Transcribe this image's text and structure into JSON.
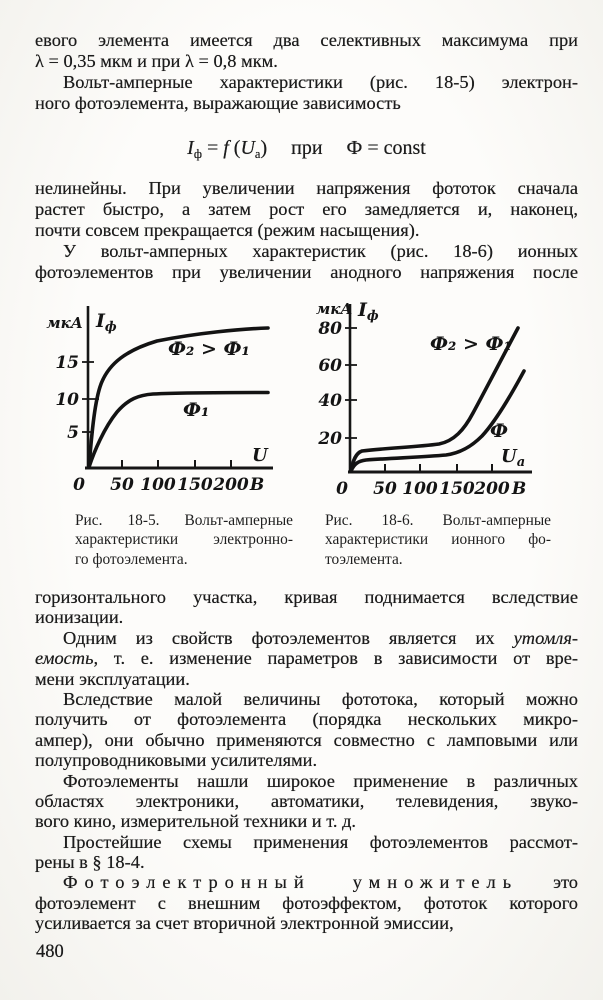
{
  "page": {
    "number": "480"
  },
  "content": {
    "top": {
      "paragraphs": [
        {
          "indent": false,
          "lines": [
            {
              "j": 1,
              "seg": [
                {
                  "t": "евого элемента имеется два селективных максимума при"
                }
              ]
            },
            {
              "j": 0,
              "seg": [
                {
                  "t": "λ = 0,35 мкм и при λ = 0,8 мкм."
                }
              ]
            }
          ]
        },
        {
          "indent": true,
          "lines": [
            {
              "j": 1,
              "seg": [
                {
                  "t": "Вольт-амперные характеристики (рис. 18-5) электрон-"
                }
              ]
            },
            {
              "j": 0,
              "seg": [
                {
                  "t": "ного фотоэлемента, выражающие зависимость"
                }
              ]
            }
          ]
        }
      ]
    },
    "mid": {
      "paragraphs": [
        {
          "indent": false,
          "lines": [
            {
              "j": 1,
              "seg": [
                {
                  "t": "нелинейны. При увеличении напряжения фототок сначала"
                }
              ]
            },
            {
              "j": 1,
              "seg": [
                {
                  "t": "растет быстро, а затем рост его замедляется и, наконец,"
                }
              ]
            },
            {
              "j": 0,
              "seg": [
                {
                  "t": "почти совсем прекращается (режим насыщения)."
                }
              ]
            }
          ]
        },
        {
          "indent": true,
          "lines": [
            {
              "j": 1,
              "seg": [
                {
                  "t": "У вольт-амперных характеристик (рис. 18-6) ионных"
                }
              ]
            },
            {
              "j": 1,
              "seg": [
                {
                  "t": "фотоэлементов при увеличении анодного напряжения после"
                }
              ]
            }
          ]
        }
      ]
    },
    "bottom": {
      "paragraphs": [
        {
          "indent": false,
          "lines": [
            {
              "j": 1,
              "seg": [
                {
                  "t": "горизонтального участка, кривая поднимается вследствие"
                }
              ]
            },
            {
              "j": 0,
              "seg": [
                {
                  "t": "ионизации."
                }
              ]
            }
          ]
        },
        {
          "indent": true,
          "lines": [
            {
              "j": 1,
              "seg": [
                {
                  "t": "Одним из свойств фотоэлементов является их "
                },
                {
                  "t": "утомля-",
                  "s": "i"
                }
              ]
            },
            {
              "j": 1,
              "seg": [
                {
                  "t": "емость,",
                  "s": "i"
                },
                {
                  "t": " т. е. изменение параметров в зависимости от вре-"
                }
              ]
            },
            {
              "j": 0,
              "seg": [
                {
                  "t": "мени эксплуатации."
                }
              ]
            }
          ]
        },
        {
          "indent": true,
          "lines": [
            {
              "j": 1,
              "seg": [
                {
                  "t": "Вследствие малой величины фототока, который можно"
                }
              ]
            },
            {
              "j": 1,
              "seg": [
                {
                  "t": "получить от фотоэлемента (порядка нескольких микро-"
                }
              ]
            },
            {
              "j": 1,
              "seg": [
                {
                  "t": "ампер), они обычно применяются совместно с ламповыми или"
                }
              ]
            },
            {
              "j": 0,
              "seg": [
                {
                  "t": "полупроводниковыми усилителями."
                }
              ]
            }
          ]
        },
        {
          "indent": true,
          "lines": [
            {
              "j": 1,
              "seg": [
                {
                  "t": "Фотоэлементы нашли широкое применение в различных"
                }
              ]
            },
            {
              "j": 1,
              "seg": [
                {
                  "t": "областях электроники, автоматики, телевидения, звуко-"
                }
              ]
            },
            {
              "j": 0,
              "seg": [
                {
                  "t": "вого кино, измерительной техники и т. д."
                }
              ]
            }
          ]
        },
        {
          "indent": true,
          "lines": [
            {
              "j": 1,
              "seg": [
                {
                  "t": "Простейшие схемы применения фотоэлементов рассмот-"
                }
              ]
            },
            {
              "j": 0,
              "seg": [
                {
                  "t": "рены в § 18-4."
                }
              ]
            }
          ]
        },
        {
          "indent": true,
          "lines": [
            {
              "j": 1,
              "seg": [
                {
                  "t": "Фотоэлектронный умножитель",
                  "s": "sp"
                },
                {
                  "t": " это"
                }
              ]
            },
            {
              "j": 1,
              "seg": [
                {
                  "t": "фотоэлемент с внешним фотоэффектом, фототок которого"
                }
              ]
            },
            {
              "j": 0,
              "seg": [
                {
                  "t": "усиливается за счет вторичной электронной эмиссии,"
                }
              ]
            }
          ]
        }
      ]
    }
  },
  "formula": {
    "segments": [
      {
        "t": "I",
        "s": "i"
      },
      {
        "t": "ф",
        "s": "sub"
      },
      {
        "t": " = "
      },
      {
        "t": "f",
        "s": "i"
      },
      {
        "t": " ("
      },
      {
        "t": "U",
        "s": "i"
      },
      {
        "t": "а",
        "s": "sub"
      },
      {
        "t": ")"
      },
      {
        "t": "при",
        "s": "gap"
      },
      {
        "t": "Ф = const"
      }
    ]
  },
  "figures": {
    "left": {
      "caption_lines": [
        "Рис. 18-5. Вольт-амперные",
        "характеристики электронно-",
        "го фотоэлемента."
      ]
    },
    "right": {
      "caption_lines": [
        "Рис. 18-6. Вольт-амперные",
        "характеристики ионного фо-",
        "тоэлемента."
      ]
    }
  },
  "chart_data": [
    {
      "type": "line",
      "title": "Рис. 18-5. Вольт-амперные характеристики электронного фотоэлемента",
      "xlabel": "U",
      "x_unit": "В",
      "y_unit": "мкА",
      "y_var": "I",
      "y_var_sub": "ф",
      "x_ticks": [
        0,
        50,
        100,
        150,
        200
      ],
      "y_ticks": [
        5,
        10,
        15
      ],
      "xlim": [
        0,
        250
      ],
      "ylim": [
        0,
        20
      ],
      "grid": false,
      "series": [
        {
          "label": "Ф₂ > Ф₁",
          "x": [
            0,
            5,
            10,
            15,
            20,
            30,
            50,
            75,
            100,
            150,
            200,
            240
          ],
          "values": [
            0,
            4,
            8,
            11.5,
            14,
            16,
            17.5,
            18.3,
            18.8,
            19.3,
            19.6,
            19.7
          ]
        },
        {
          "label": "Ф₁",
          "x": [
            0,
            10,
            20,
            30,
            40,
            50,
            60,
            80,
            100,
            150,
            200,
            240
          ],
          "values": [
            0,
            1.5,
            3.5,
            5.5,
            7.5,
            9,
            9.7,
            10,
            10,
            10,
            10,
            10
          ]
        }
      ]
    },
    {
      "type": "line",
      "title": "Рис. 18-6. Вольт-амперные характеристики ионного фотоэлемента",
      "xlabel": "U",
      "xlabel_sub": "а",
      "x_unit": "В",
      "y_unit": "мкА",
      "y_var": "I",
      "y_var_sub": "ф",
      "x_ticks": [
        0,
        50,
        100,
        150,
        200
      ],
      "y_ticks": [
        20,
        40,
        60,
        80
      ],
      "xlim": [
        0,
        250
      ],
      "ylim": [
        0,
        85
      ],
      "grid": false,
      "series": [
        {
          "label": "Ф₂ > Ф₁",
          "x": [
            0,
            5,
            15,
            30,
            60,
            100,
            125,
            150,
            175,
            200,
            220,
            230
          ],
          "values": [
            0,
            6,
            10,
            11.5,
            12.5,
            13.5,
            15,
            22,
            38,
            60,
            75,
            80
          ]
        },
        {
          "label": "Ф",
          "x": [
            0,
            5,
            15,
            30,
            60,
            100,
            130,
            160,
            185,
            210,
            235,
            245
          ],
          "values": [
            0,
            4,
            6,
            6.8,
            7.5,
            8,
            9,
            14,
            24,
            38,
            50,
            56
          ]
        }
      ]
    }
  ]
}
